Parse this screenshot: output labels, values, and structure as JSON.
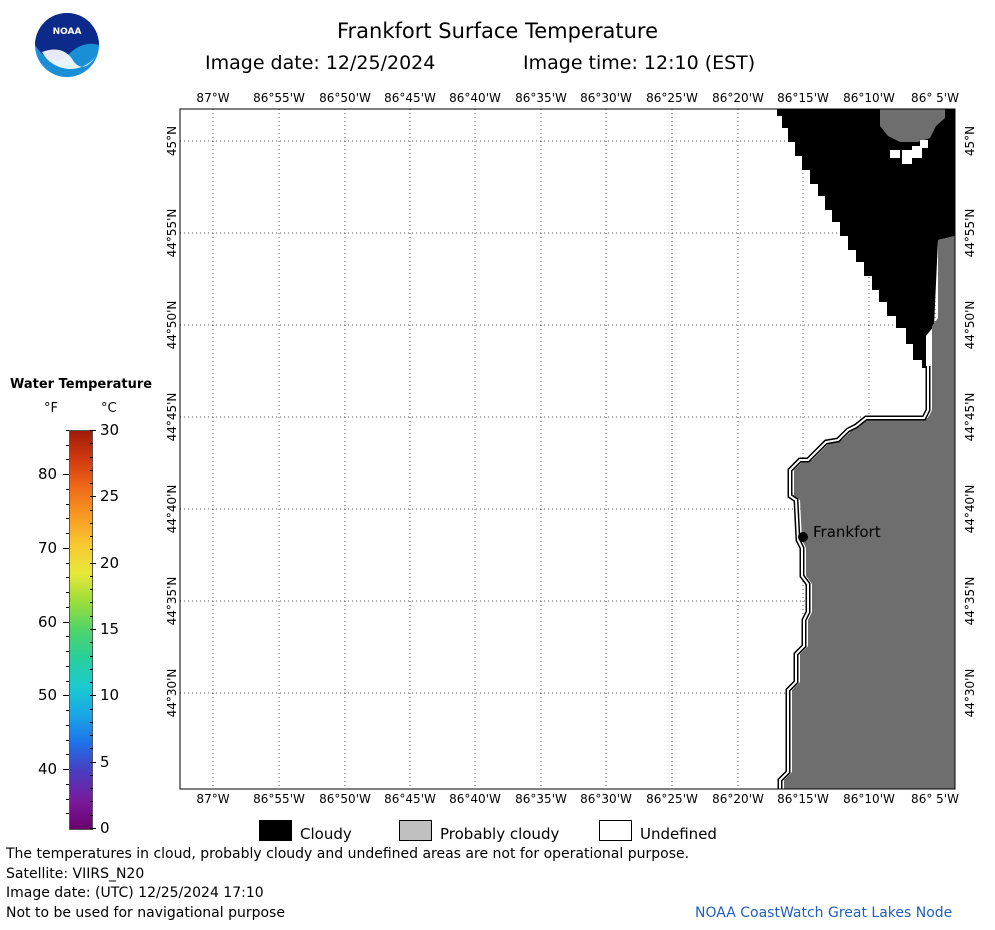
{
  "header": {
    "title": "Frankfort Surface Temperature",
    "image_date": "Image date: 12/25/2024",
    "image_time": "Image time: 12:10 (EST)"
  },
  "logo": {
    "text": "NOAA"
  },
  "map": {
    "lon_labels": [
      "87°W",
      "86°55'W",
      "86°50'W",
      "86°45'W",
      "86°40'W",
      "86°35'W",
      "86°30'W",
      "86°25'W",
      "86°20'W",
      "86°15'W",
      "86°10'W",
      "86° 5'W"
    ],
    "lat_labels": [
      "45°N",
      "44°55'N",
      "44°50'N",
      "44°45'N",
      "44°40'N",
      "44°35'N",
      "44°30'N"
    ],
    "city_label": "Frankfort",
    "colors": {
      "cloudy": "#000000",
      "probably_cloudy": "#6e6e6e",
      "undefined": "#ffffff",
      "grid": "#555555"
    }
  },
  "colorbar": {
    "title": "Water Temperature",
    "unit_f": "°F",
    "unit_c": "°C",
    "f_ticks": [
      "80",
      "70",
      "60",
      "50",
      "40"
    ],
    "c_ticks": [
      "30",
      "25",
      "20",
      "15",
      "10",
      "5",
      "0"
    ],
    "f_range": [
      32,
      86
    ],
    "c_range": [
      0,
      30
    ],
    "colors": [
      "#6a006e",
      "#7a1a9c",
      "#4a3bbf",
      "#1f6fe8",
      "#19a6e6",
      "#1bc9d0",
      "#28cf9a",
      "#4fd46b",
      "#9ade3a",
      "#e8e83a",
      "#f7c830",
      "#f79a22",
      "#ef6a18",
      "#d23a10",
      "#9e1a08"
    ]
  },
  "legend": {
    "cloudy": "Cloudy",
    "probably_cloudy": "Probably cloudy",
    "undefined": "Undefined"
  },
  "footer": {
    "line1": "The temperatures in cloud, probably cloudy and undefined areas are not for operational purpose.",
    "line2": "Satellite: VIIRS_N20",
    "line3": "Image date: (UTC) 12/25/2024  17:10",
    "line4": "Not to be used for navigational purpose",
    "credit": "NOAA CoastWatch Great Lakes Node"
  }
}
